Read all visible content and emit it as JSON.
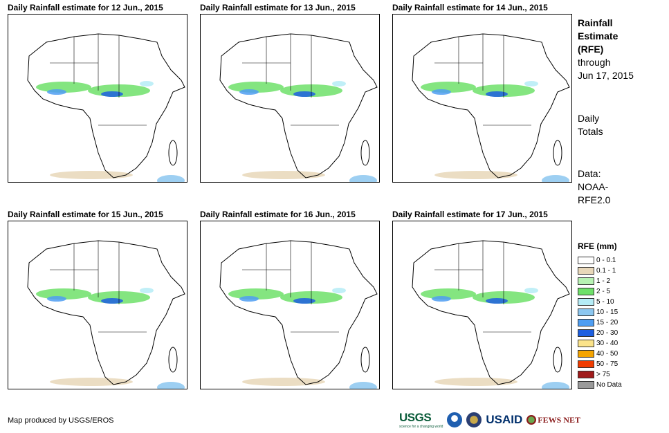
{
  "panels": [
    {
      "title": "Daily Rainfall estimate for 12 Jun., 2015"
    },
    {
      "title": "Daily Rainfall estimate for 13 Jun., 2015"
    },
    {
      "title": "Daily Rainfall estimate for 14 Jun., 2015"
    },
    {
      "title": "Daily Rainfall estimate for 15 Jun., 2015"
    },
    {
      "title": "Daily Rainfall estimate for 16 Jun., 2015"
    },
    {
      "title": "Daily Rainfall estimate for 17 Jun., 2015"
    }
  ],
  "side": {
    "heading_line1": "Rainfall",
    "heading_line2": "Estimate",
    "heading_line3": "(RFE)",
    "through_label": "through",
    "through_date": "Jun 17, 2015",
    "totals_line1": "Daily",
    "totals_line2": "Totals",
    "data_line1": "Data:",
    "data_line2": "NOAA-",
    "data_line3": "RFE2.0"
  },
  "legend": {
    "title": "RFE (mm)",
    "items": [
      {
        "label": "0 - 0.1",
        "color": "#ffffff"
      },
      {
        "label": "0.1 - 1",
        "color": "#e8d7b9"
      },
      {
        "label": "1 - 2",
        "color": "#b7f2b3"
      },
      {
        "label": "2 - 5",
        "color": "#6ee06a"
      },
      {
        "label": "5 - 10",
        "color": "#b5ecf6"
      },
      {
        "label": "10 - 15",
        "color": "#8cc7f0"
      },
      {
        "label": "15 - 20",
        "color": "#4f9ef2"
      },
      {
        "label": "20 - 30",
        "color": "#1d5fe0"
      },
      {
        "label": "30 - 40",
        "color": "#fbe38a"
      },
      {
        "label": "40 - 50",
        "color": "#f5a400"
      },
      {
        "label": "50 - 75",
        "color": "#f03c00"
      },
      {
        "label": "> 75",
        "color": "#a01b1b"
      },
      {
        "label": "No Data",
        "color": "#9a9a9a"
      }
    ]
  },
  "footer": {
    "credit": "Map produced by USGS/EROS"
  },
  "logos": {
    "usgs": "USGS",
    "usgs_tagline": "science for a changing world",
    "noaa_icon": "noaa-seal-icon",
    "dos_icon": "state-dept-seal-icon",
    "usaid": "USAID",
    "fews": "FEWS NET"
  }
}
